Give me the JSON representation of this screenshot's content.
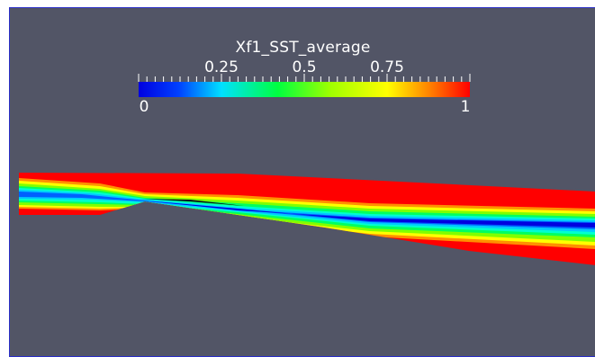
{
  "scalar_bar": {
    "title": "Xf1_SST_average",
    "min_label": "0",
    "max_label": "1",
    "tick_labels": [
      "0.25",
      "0.5",
      "0.75"
    ],
    "range": [
      0,
      1
    ],
    "colormap": "rainbow (blue to red)",
    "colors": [
      "#0000ff",
      "#00ffff",
      "#00ff00",
      "#ffff00",
      "#ff0000"
    ]
  },
  "view": {
    "background": "#525566",
    "content": "2D contour plot of Xf1_SST_average over a channel geometry"
  }
}
